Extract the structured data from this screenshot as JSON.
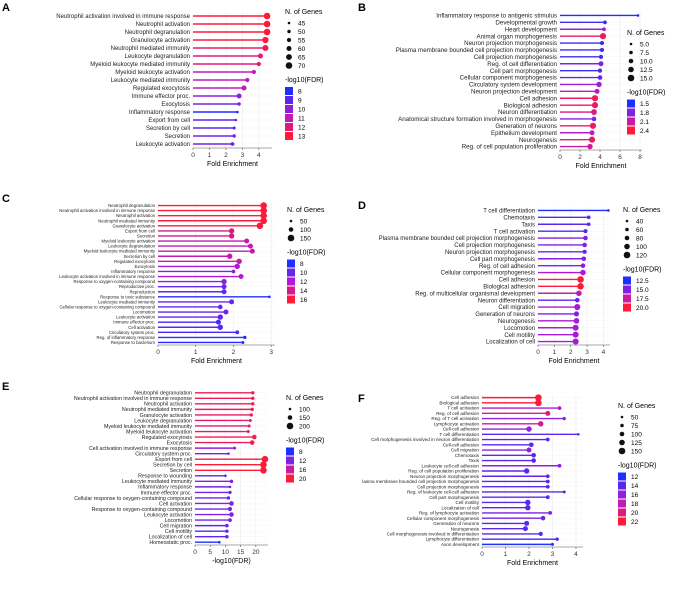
{
  "chart_data": [
    {
      "panel": "A",
      "type": "lollipop",
      "xlabel": "Fold Enrichment",
      "xlim": [
        0,
        4.8
      ],
      "xticks": [
        0,
        1,
        2,
        3,
        4
      ],
      "categories": [
        "Neutrophil activation involved in immune response",
        "Neutrophil activation",
        "Neutrophil degranulation",
        "Granulocyte activation",
        "Neutrophil mediated immunity",
        "Leukocyte degranulation",
        "Myeloid leukocyte mediated immunity",
        "Myeloid leukocyte activation",
        "Leukocyte mediated immunity",
        "Regulated exocytosis",
        "Immune effector proc.",
        "Exocytosis",
        "Inflammatory response",
        "Export from cell",
        "Secretion by cell",
        "Secretion",
        "Leukocyte activation"
      ],
      "values": [
        4.5,
        4.5,
        4.5,
        4.4,
        4.4,
        4.1,
        4.0,
        3.7,
        3.3,
        3.1,
        2.8,
        2.8,
        2.7,
        2.6,
        2.5,
        2.5,
        2.4
      ],
      "genes": [
        70,
        70,
        70,
        68,
        67,
        60,
        55,
        55,
        55,
        60,
        60,
        50,
        45,
        45,
        48,
        50,
        52
      ],
      "fdr": [
        13,
        13,
        13,
        13,
        12.5,
        12,
        12,
        11,
        11,
        11,
        10,
        9.5,
        8,
        9,
        9,
        9.5,
        9.5
      ],
      "size_legend": {
        "title": "N. of Genes",
        "labels": [
          "45",
          "50",
          "55",
          "60",
          "65",
          "70"
        ],
        "values": [
          45,
          50,
          55,
          60,
          65,
          70
        ]
      },
      "color_legend": {
        "title": "-log10(FDR)",
        "labels": [
          "8",
          "9",
          "10",
          "11",
          "12",
          "13"
        ],
        "values": [
          8,
          9,
          10,
          11,
          12,
          13
        ]
      }
    },
    {
      "panel": "B",
      "type": "lollipop",
      "xlabel": "Fold Enrichment",
      "xlim": [
        0,
        8.2
      ],
      "xticks": [
        0,
        2,
        4,
        6,
        8
      ],
      "categories": [
        "Inflammatory response to antigenic stimulus",
        "Developmental growth",
        "Heart development",
        "Animal organ morphogenesis",
        "Neuron projection morphogenesis",
        "Plasma membrane bounded cell projection morphogenesis",
        "Cell projection morphogenesis",
        "Reg. of cell differentiation",
        "Cell part morphogenesis",
        "Cellular component morphogenesis",
        "Circulatory system development",
        "Neuron projection development",
        "Cell adhesion",
        "Biological adhesion",
        "Neuron differentiation",
        "Anatomical structure formation involved in morphogenesis",
        "Generation of neurons",
        "Epithelium development",
        "Neurogenesis",
        "Reg. of cell population proliferation"
      ],
      "values": [
        7.8,
        4.5,
        4.4,
        4.3,
        4.2,
        4.2,
        4.1,
        4.1,
        4.0,
        4.0,
        3.9,
        3.7,
        3.5,
        3.5,
        3.4,
        3.4,
        3.3,
        3.2,
        3.2,
        3.0
      ],
      "genes": [
        5,
        8,
        8,
        14,
        9,
        9,
        9,
        11,
        9,
        10,
        12,
        11,
        14,
        14,
        13,
        10,
        14,
        11,
        14,
        12
      ],
      "fdr": [
        1.4,
        1.6,
        1.9,
        2.3,
        1.6,
        1.6,
        1.6,
        1.8,
        1.6,
        1.7,
        1.9,
        2.0,
        2.3,
        2.3,
        2.2,
        1.8,
        2.3,
        2.0,
        2.3,
        2.1
      ],
      "size_legend": {
        "title": "N. of Genes",
        "labels": [
          "5.0",
          "7.5",
          "10.0",
          "12.5",
          "15.0"
        ],
        "values": [
          5,
          7.5,
          10,
          12.5,
          15
        ]
      },
      "color_legend": {
        "title": "-log10(FDR)",
        "labels": [
          "1.5",
          "1.8",
          "2.1",
          "2.4"
        ],
        "values": [
          1.5,
          1.8,
          2.1,
          2.4
        ]
      }
    },
    {
      "panel": "C",
      "type": "lollipop",
      "xlabel": "Fold Enrichment",
      "xlim": [
        0,
        3.1
      ],
      "xticks": [
        0,
        1,
        2,
        3
      ],
      "categories": [
        "Neutrophil degranulation",
        "Neutrophil activation involved in immune response",
        "Neutrophil activation",
        "Neutrophil mediated immunity",
        "Granulocyte activation",
        "Export from cell",
        "Secretion",
        "Myeloid leukocyte activation",
        "Leukocyte degranulation",
        "Myeloid leukocyte mediated immunity",
        "Secretion by cell",
        "Regulated exocytosis",
        "Exocytosis",
        "Inflammatory response",
        "Leukocyte activation involved in immune response",
        "Response to oxygen-containing compound",
        "Reproductive proc.",
        "Reproduction",
        "Response to toxic substance",
        "Leukocyte mediated immunity",
        "Cellular response to oxygen-containing compound",
        "Locomotion",
        "Leukocyte activation",
        "Immune effector proc.",
        "Cell activation",
        "Circulatory system proc.",
        "Reg. of inflammatory response",
        "Response to bacterium"
      ],
      "values": [
        2.8,
        2.8,
        2.8,
        2.8,
        2.7,
        1.95,
        1.95,
        2.35,
        2.45,
        2.5,
        1.9,
        2.15,
        2.1,
        2.0,
        2.2,
        1.75,
        1.75,
        1.75,
        2.95,
        1.95,
        1.65,
        1.8,
        1.65,
        1.6,
        1.65,
        2.1,
        2.3,
        2.25
      ],
      "genes": [
        150,
        150,
        150,
        150,
        150,
        120,
        120,
        110,
        110,
        110,
        120,
        120,
        120,
        80,
        110,
        120,
        110,
        110,
        50,
        110,
        100,
        110,
        120,
        110,
        120,
        80,
        70,
        60
      ],
      "fdr": [
        16,
        16,
        16,
        16,
        16,
        14,
        14,
        13,
        13,
        13,
        13,
        13,
        12,
        11,
        12,
        11,
        10,
        10,
        8,
        10,
        10,
        10,
        10,
        9,
        9.5,
        9,
        8.5,
        8
      ],
      "size_legend": {
        "title": "N. of Genes",
        "labels": [
          "50",
          "100",
          "150"
        ],
        "values": [
          50,
          100,
          150
        ]
      },
      "color_legend": {
        "title": "-log10(FDR)",
        "labels": [
          "8",
          "10",
          "12",
          "14",
          "16"
        ],
        "values": [
          8,
          10,
          12,
          14,
          16
        ]
      }
    },
    {
      "panel": "D",
      "type": "lollipop",
      "xlabel": "Fold Enrichment",
      "xlim": [
        0,
        4.4
      ],
      "xticks": [
        0,
        1,
        2,
        3,
        4
      ],
      "categories": [
        "T cell differentiation",
        "Chemotaxis",
        "Taxis",
        "T cell activation",
        "Plasma membrane bounded cell projection morphogenesis",
        "Cell projection morphogenesis",
        "Neuron projection morphogenesis",
        "Cell part morphogenesis",
        "Reg. of cell adhesion",
        "Cellular component morphogenesis",
        "Cell adhesion",
        "Biological adhesion",
        "Reg. of multicellular organismal development",
        "Neuron differentiation",
        "Cell migration",
        "Generation of neurons",
        "Neurogenesis",
        "Locomotion",
        "Cell motility",
        "Localization of cell"
      ],
      "values": [
        4.3,
        3.1,
        3.1,
        2.9,
        2.9,
        2.85,
        2.85,
        2.8,
        2.75,
        2.75,
        2.6,
        2.6,
        2.5,
        2.4,
        2.4,
        2.35,
        2.35,
        2.3,
        2.3,
        2.3
      ],
      "genes": [
        40,
        60,
        60,
        70,
        80,
        80,
        70,
        80,
        80,
        100,
        120,
        120,
        100,
        80,
        110,
        90,
        100,
        110,
        110,
        110
      ],
      "fdr": [
        12.5,
        14,
        14,
        14,
        15,
        15,
        14.5,
        15,
        15,
        16,
        20,
        20,
        17,
        14,
        16,
        15,
        16,
        16,
        16,
        16
      ],
      "size_legend": {
        "title": "N. of Genes",
        "labels": [
          "40",
          "60",
          "80",
          "100",
          "120"
        ],
        "values": [
          40,
          60,
          80,
          100,
          120
        ]
      },
      "color_legend": {
        "title": "-log10(FDR)",
        "labels": [
          "12.5",
          "15.0",
          "17.5",
          "20.0"
        ],
        "values": [
          12.5,
          15,
          17.5,
          20
        ]
      }
    },
    {
      "panel": "E",
      "type": "lollipop",
      "xlabel": "-log10(FDR)",
      "xlim": [
        0,
        24
      ],
      "xticks": [
        0,
        5,
        10,
        15,
        20
      ],
      "categories": [
        "Neutrophil degranulation",
        "Neutrophil activation involved in immune response",
        "Neutrophil activation",
        "Neutrophil mediated immunity",
        "Granulocyte activation",
        "Leukocyte degranulation",
        "Myeloid leukocyte mediated immunity",
        "Myeloid leukocyte activation",
        "Regulated exocytosis",
        "Exocytosis",
        "Cell activation involved in immune response",
        "Circulatory system proc.",
        "Export from cell",
        "Secretion by cell",
        "Secretion",
        "Response to wounding",
        "Leukocyte mediated immunity",
        "Inflammatory response",
        "Immune effector proc.",
        "Cellular response to oxygen-containing compound",
        "Cell activation",
        "Response to oxygen-containing compound",
        "Leukocyte activation",
        "Locomotion",
        "Cell migration",
        "Cell motility",
        "Localization of cell",
        "Homeostatic proc."
      ],
      "values": [
        19,
        19,
        19,
        18.8,
        18.5,
        18.2,
        17.8,
        17.5,
        19.5,
        18.8,
        13,
        11,
        23,
        22.5,
        22.5,
        10,
        12,
        11.5,
        11.5,
        11,
        12,
        11.5,
        12,
        11.5,
        10.5,
        10.5,
        10.5,
        8
      ],
      "genes": [
        120,
        120,
        120,
        120,
        120,
        110,
        110,
        110,
        150,
        150,
        110,
        50,
        200,
        200,
        200,
        80,
        120,
        90,
        120,
        120,
        150,
        140,
        150,
        130,
        120,
        120,
        120,
        100
      ],
      "fdr": [
        19,
        19,
        19,
        18.8,
        18.5,
        18.2,
        17.8,
        17.5,
        19.5,
        18.8,
        13,
        11,
        23,
        22.5,
        22.5,
        10,
        12,
        11.5,
        11.5,
        11,
        12,
        11.5,
        12,
        11.5,
        10.5,
        10.5,
        10.5,
        8
      ],
      "size_legend": {
        "title": "N. of Genes",
        "labels": [
          "100",
          "150",
          "200"
        ],
        "values": [
          100,
          150,
          200
        ]
      },
      "color_legend": {
        "title": "-log10(FDR)",
        "labels": [
          "8",
          "12",
          "16",
          "20"
        ],
        "values": [
          8,
          12,
          16,
          20
        ]
      }
    },
    {
      "panel": "F",
      "type": "lollipop",
      "xlabel": "Fold Enrichment",
      "xlim": [
        0,
        4.3
      ],
      "xticks": [
        0,
        1,
        2,
        3,
        4
      ],
      "categories": [
        "Cell adhesion",
        "Biological adhesion",
        "T cell activation",
        "Reg. of cell adhesion",
        "Reg. of T cell activation",
        "Lymphocyte activation",
        "Cell-cell adhesion",
        "T cell differentiation",
        "Cell morphogenesis involved in neuron differentiation",
        "Cell-cell adhesion",
        "Cell migration",
        "Chemotaxis",
        "Taxis",
        "Leukocyte cell-cell adhesion",
        "Reg. of cell population proliferation",
        "Neuron projection morphogenesis",
        "lasma membrane bounded cell projection morphogenesis",
        "Cell projection morphogenesis",
        "Reg. of leukocyte cell-cell adhesion",
        "Cell part morphogenesis",
        "Cell motility",
        "Localization of cell",
        "Reg. of lymphocyte activation",
        "Cellular component morphogenesis",
        "Generation of neurons",
        "Neurogenesis",
        "Cell morphogenesis involved in differentiation",
        "Lymphocyte differentiation",
        "Axon development"
      ],
      "values": [
        2.4,
        2.4,
        3.3,
        2.8,
        3.5,
        2.5,
        2.0,
        4.1,
        2.8,
        2.1,
        2.0,
        2.2,
        2.2,
        3.3,
        1.9,
        2.8,
        2.8,
        2.8,
        3.5,
        2.8,
        1.95,
        1.95,
        2.9,
        2.6,
        1.9,
        1.85,
        2.5,
        3.2,
        3.0
      ],
      "genes": [
        150,
        150,
        80,
        110,
        70,
        120,
        120,
        50,
        80,
        100,
        110,
        100,
        100,
        80,
        120,
        80,
        80,
        80,
        60,
        80,
        120,
        120,
        80,
        100,
        110,
        110,
        90,
        70,
        60
      ],
      "fdr": [
        22,
        22,
        17,
        20,
        16,
        19,
        16,
        14,
        14,
        14,
        16,
        14,
        14,
        16,
        14,
        14,
        14,
        14,
        14,
        14,
        14,
        14,
        15,
        15,
        14,
        14,
        14,
        13,
        12
      ],
      "size_legend": {
        "title": "N. of Genes",
        "labels": [
          "50",
          "75",
          "100",
          "125",
          "150"
        ],
        "values": [
          50,
          75,
          100,
          125,
          150
        ]
      },
      "color_legend": {
        "title": "-log10(FDR)",
        "labels": [
          "12",
          "14",
          "16",
          "18",
          "20",
          "22"
        ],
        "values": [
          12,
          14,
          16,
          18,
          20,
          22
        ]
      }
    }
  ],
  "colors": {
    "low": "#1f2fff",
    "mid": "#b01ad6",
    "high": "#ff1a3a",
    "grid": "#ececec",
    "axis": "#555555"
  }
}
